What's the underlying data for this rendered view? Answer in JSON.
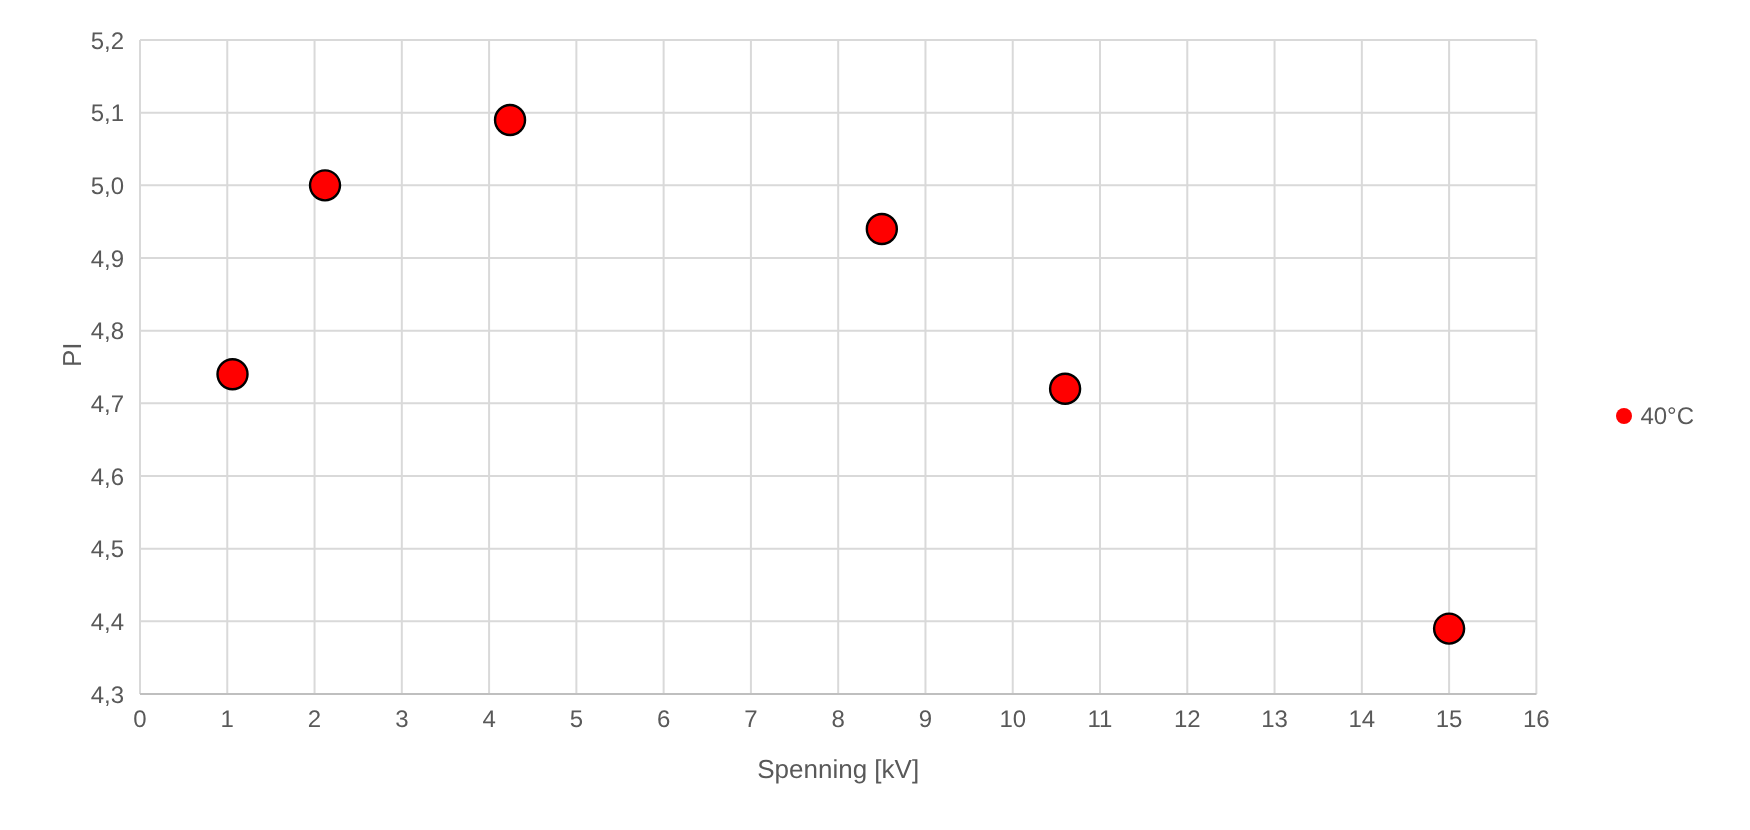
{
  "chart_data": {
    "type": "scatter",
    "xlabel": "Spenning [kV]",
    "ylabel": "PI",
    "x": [
      1.06,
      2.12,
      4.24,
      8.5,
      10.6,
      15
    ],
    "series": [
      {
        "name": "40°C",
        "color": "#ff0000",
        "values": [
          4.74,
          5.0,
          5.09,
          4.94,
          4.72,
          4.39
        ]
      }
    ],
    "xlim": [
      0,
      16
    ],
    "xticks": [
      0,
      1,
      2,
      3,
      4,
      5,
      6,
      7,
      8,
      9,
      10,
      11,
      12,
      13,
      14,
      15,
      16
    ],
    "ylim": [
      4.3,
      5.2
    ],
    "yticks": [
      {
        "value": 4.3,
        "label": "4,3"
      },
      {
        "value": 4.4,
        "label": "4,4"
      },
      {
        "value": 4.5,
        "label": "4,5"
      },
      {
        "value": 4.6,
        "label": "4,6"
      },
      {
        "value": 4.7,
        "label": "4,7"
      },
      {
        "value": 4.8,
        "label": "4,8"
      },
      {
        "value": 4.9,
        "label": "4,9"
      },
      {
        "value": 5.0,
        "label": "5,0"
      },
      {
        "value": 5.1,
        "label": "5,1"
      },
      {
        "value": 5.2,
        "label": "5,2"
      }
    ],
    "grid": true,
    "legend": "right",
    "marker": "circle"
  }
}
